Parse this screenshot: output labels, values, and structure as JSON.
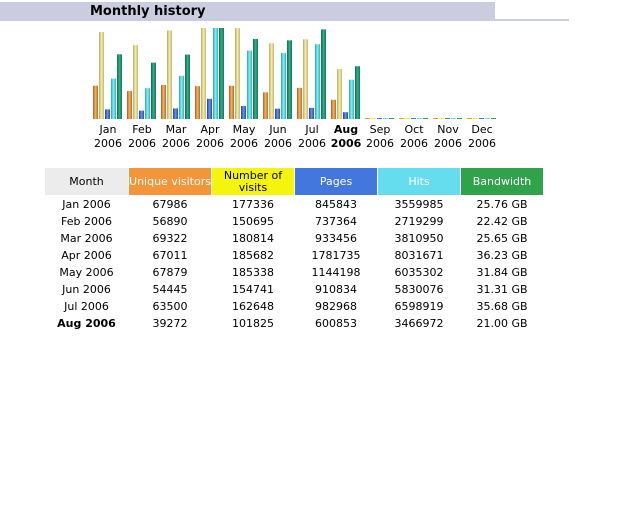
{
  "title": "Monthly history",
  "colors": {
    "visitors": "#f4953a",
    "visits": "#f4f40c",
    "pages": "#4477dd",
    "hits": "#66ddee",
    "bandwidth": "#2ea349"
  },
  "chart_data": {
    "type": "bar",
    "categories": [
      "Jan 2006",
      "Feb 2006",
      "Mar 2006",
      "Apr 2006",
      "May 2006",
      "Jun 2006",
      "Jul 2006",
      "Aug 2006",
      "Sep 2006",
      "Oct 2006",
      "Nov 2006",
      "Dec 2006"
    ],
    "month_labels": [
      "Jan",
      "Feb",
      "Mar",
      "Apr",
      "May",
      "Jun",
      "Jul",
      "Aug",
      "Sep",
      "Oct",
      "Nov",
      "Dec"
    ],
    "year_label": "2006",
    "highlight": "Aug",
    "series": [
      {
        "name": "Unique visitors",
        "color": "#f4953a",
        "values": [
          67986,
          56890,
          69322,
          67011,
          67879,
          54445,
          63500,
          39272,
          0,
          0,
          0,
          0
        ]
      },
      {
        "name": "Number of visits",
        "color": "#f4f40c",
        "values": [
          177336,
          150695,
          180814,
          185682,
          185338,
          154741,
          162648,
          101825,
          0,
          0,
          0,
          0
        ]
      },
      {
        "name": "Pages",
        "color": "#4477dd",
        "values": [
          845843,
          737364,
          933456,
          1781735,
          1144198,
          910834,
          982968,
          600853,
          0,
          0,
          0,
          0
        ]
      },
      {
        "name": "Hits",
        "color": "#66ddee",
        "values": [
          3559985,
          2719299,
          3810950,
          8031671,
          6035302,
          5830076,
          6598919,
          3466972,
          0,
          0,
          0,
          0
        ]
      },
      {
        "name": "Bandwidth",
        "color": "#2ea349",
        "values": [
          25.76,
          22.42,
          25.65,
          36.23,
          31.84,
          31.31,
          35.68,
          21.0,
          0,
          0,
          0,
          0
        ]
      }
    ]
  },
  "table": {
    "headers": {
      "month": "Month",
      "visitors": "Unique visitors",
      "visits": "Number of visits",
      "pages": "Pages",
      "hits": "Hits",
      "bandwidth": "Bandwidth"
    },
    "rows": [
      {
        "month": "Jan 2006",
        "visitors": "67986",
        "visits": "177336",
        "pages": "845843",
        "hits": "3559985",
        "bandwidth": "25.76 GB"
      },
      {
        "month": "Feb 2006",
        "visitors": "56890",
        "visits": "150695",
        "pages": "737364",
        "hits": "2719299",
        "bandwidth": "22.42 GB"
      },
      {
        "month": "Mar 2006",
        "visitors": "69322",
        "visits": "180814",
        "pages": "933456",
        "hits": "3810950",
        "bandwidth": "25.65 GB"
      },
      {
        "month": "Apr 2006",
        "visitors": "67011",
        "visits": "185682",
        "pages": "1781735",
        "hits": "8031671",
        "bandwidth": "36.23 GB"
      },
      {
        "month": "May 2006",
        "visitors": "67879",
        "visits": "185338",
        "pages": "1144198",
        "hits": "6035302",
        "bandwidth": "31.84 GB"
      },
      {
        "month": "Jun 2006",
        "visitors": "54445",
        "visits": "154741",
        "pages": "910834",
        "hits": "5830076",
        "bandwidth": "31.31 GB"
      },
      {
        "month": "Jul 2006",
        "visitors": "63500",
        "visits": "162648",
        "pages": "982968",
        "hits": "6598919",
        "bandwidth": "35.68 GB"
      },
      {
        "month": "Aug 2006",
        "visitors": "39272",
        "visits": "101825",
        "pages": "600853",
        "hits": "3466972",
        "bandwidth": "21.00 GB"
      }
    ]
  }
}
